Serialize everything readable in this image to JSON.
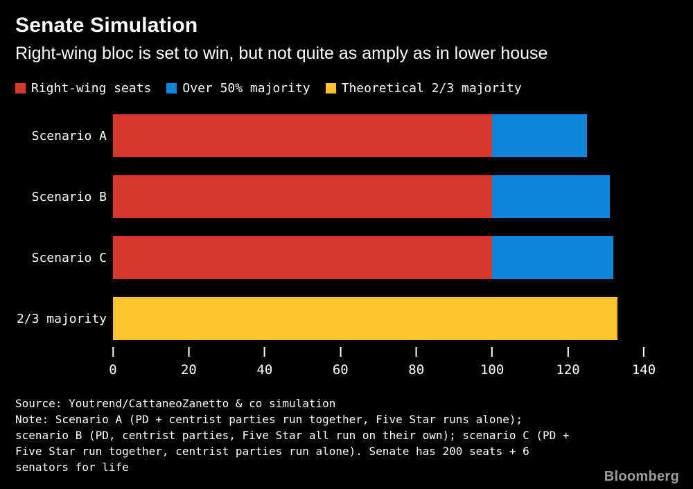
{
  "chart_data": {
    "type": "bar",
    "orientation": "horizontal",
    "title": "Senate Simulation",
    "subtitle": "Right-wing bloc is set to win, but not quite as amply as in lower house",
    "categories": [
      "Scenario A",
      "Scenario B",
      "Scenario C",
      "2/3 majority"
    ],
    "series": [
      {
        "name": "Right-wing seats",
        "color": "#d6382c",
        "values": [
          100,
          100,
          100,
          0
        ]
      },
      {
        "name": "Over 50% majority",
        "color": "#0d86d8",
        "values": [
          25,
          31,
          32,
          0
        ]
      },
      {
        "name": "Theoretical 2/3 majority",
        "color": "#fcc32d",
        "values": [
          0,
          0,
          0,
          133
        ]
      }
    ],
    "x_ticks": [
      0,
      20,
      40,
      60,
      80,
      100,
      120,
      140
    ],
    "xlim": [
      0,
      140
    ],
    "xlabel": "",
    "ylabel": "",
    "legend_position": "top",
    "grid": false,
    "background": "#000000",
    "text_color": "#ffffff"
  },
  "footer": {
    "source": "Source: Youtrend/CattaneoZanetto & co simulation",
    "note_lines": [
      "Note: Scenario A (PD + centrist parties run together, Five Star runs alone);",
      "scenario B (PD, centrist parties, Five Star all run on their own); scenario C (PD +",
      "Five Star run together, centrist parties run alone). Senate has 200 seats + 6",
      "senators for life"
    ],
    "brand": "Bloomberg"
  }
}
